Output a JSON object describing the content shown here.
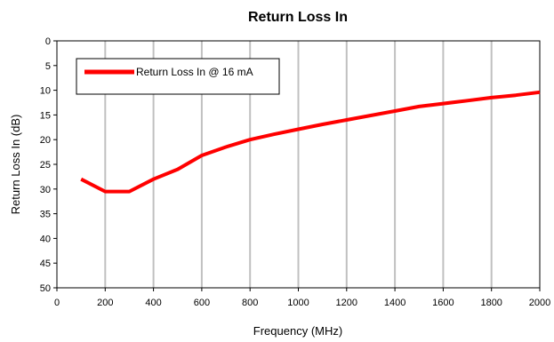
{
  "chart_data": {
    "type": "line",
    "title": "Return Loss In",
    "xlabel": "Frequency (MHz)",
    "ylabel": "Return Loss In (dB)",
    "xlim": [
      0,
      2000
    ],
    "ylim": [
      0,
      50
    ],
    "y_inverted": true,
    "x_ticks": [
      0,
      200,
      400,
      600,
      800,
      1000,
      1200,
      1400,
      1600,
      1800,
      2000
    ],
    "y_ticks": [
      0,
      5,
      10,
      15,
      20,
      25,
      30,
      35,
      40,
      45,
      50
    ],
    "grid": "vertical",
    "legend_placement": "top-left",
    "series": [
      {
        "name": "Return Loss In @ 16 mA",
        "color": "#ff0000",
        "x": [
          100,
          200,
          300,
          400,
          500,
          600,
          700,
          800,
          900,
          1000,
          1100,
          1200,
          1300,
          1400,
          1500,
          1600,
          1700,
          1800,
          1900,
          2000
        ],
        "y": [
          28,
          30.5,
          30.5,
          28,
          26,
          23.2,
          21.5,
          20,
          18.9,
          17.9,
          16.9,
          16,
          15.1,
          14.2,
          13.3,
          12.7,
          12.1,
          11.5,
          11,
          10.4
        ]
      }
    ]
  }
}
